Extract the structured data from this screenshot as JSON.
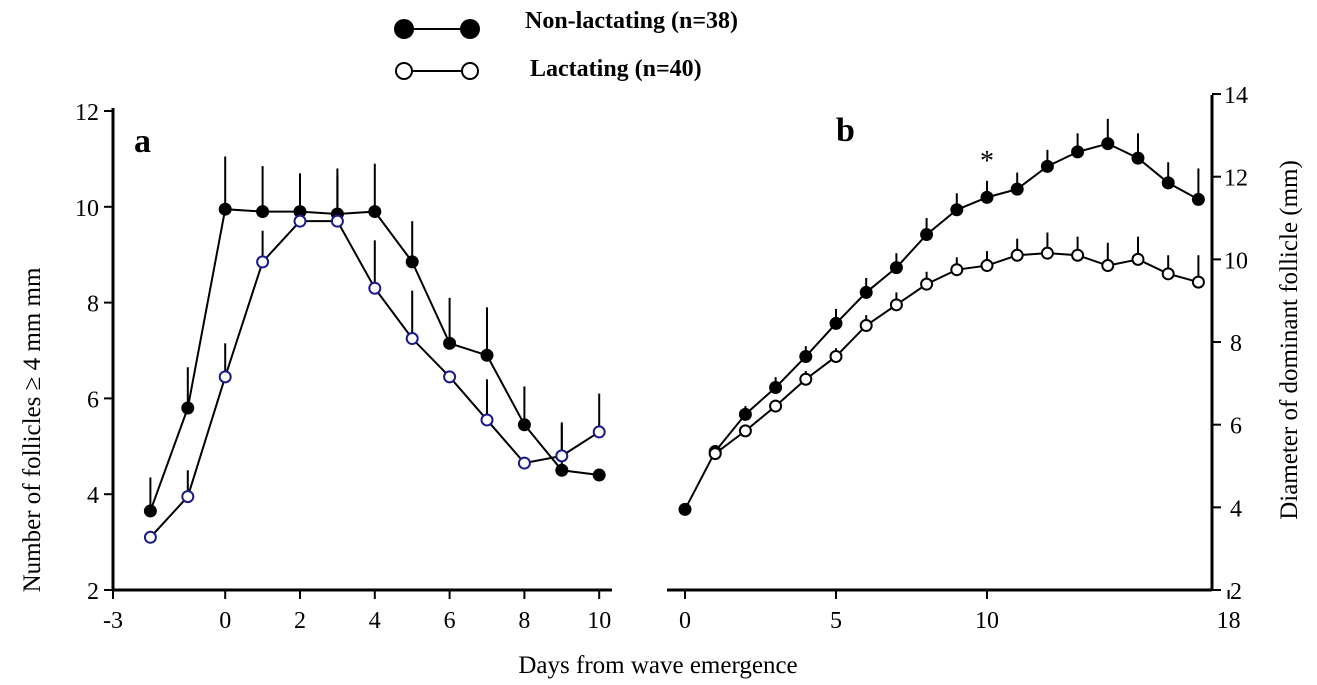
{
  "legend": {
    "items": [
      {
        "label": "Non-lactating (n=38)",
        "marker": "filled-circle",
        "color": "#000000"
      },
      {
        "label": "Lactating (n=40)",
        "marker": "open-circle",
        "color": "#000000"
      }
    ]
  },
  "xlabel": "Days from wave emergence",
  "colors": {
    "axis": "#000000",
    "non_lactating_fill": "#000000",
    "lactating_fill_panel_a": "#ffffff",
    "lactating_stroke_panel_a": "#1a1a8c",
    "lactating_fill_panel_b": "#ffffff",
    "lactating_stroke_panel_b": "#000000",
    "error_bar": "#000000"
  },
  "chart_data": [
    {
      "type": "line",
      "panel_label": "a",
      "ylabel": "Number of follicles ≥ 4 mm mm",
      "xlim": [
        -3,
        10
      ],
      "ylim": [
        2,
        12
      ],
      "x_ticks": [
        "-3",
        "0",
        "2",
        "4",
        "6",
        "8",
        "10"
      ],
      "y_ticks": [
        "2",
        "4",
        "6",
        "8",
        "10",
        "12"
      ],
      "grid": false,
      "series": [
        {
          "name": "Non-lactating (n=38)",
          "marker": "filled",
          "x": [
            -2,
            -1,
            0,
            1,
            2,
            3,
            4,
            5,
            6,
            7,
            8,
            9,
            10
          ],
          "y": [
            3.65,
            5.8,
            9.95,
            9.9,
            9.9,
            9.85,
            9.9,
            8.85,
            7.15,
            6.9,
            5.45,
            4.5,
            4.4
          ],
          "err": [
            0.7,
            0.85,
            1.1,
            0.95,
            0.8,
            0.95,
            1.0,
            0.85,
            0.95,
            1.0,
            0.8,
            1.0,
            0.0
          ]
        },
        {
          "name": "Lactating (n=40)",
          "marker": "open",
          "x": [
            -2,
            -1,
            0,
            1,
            2,
            3,
            4,
            5,
            6,
            7,
            8,
            9,
            10
          ],
          "y": [
            3.1,
            3.95,
            6.45,
            8.85,
            9.7,
            9.7,
            8.3,
            7.25,
            6.45,
            5.55,
            4.65,
            4.8,
            5.3
          ],
          "err": [
            0.0,
            0.55,
            0.7,
            0.65,
            0.0,
            0.95,
            1.0,
            1.0,
            0.0,
            0.85,
            0.0,
            0.65,
            0.8
          ]
        }
      ]
    },
    {
      "type": "line",
      "panel_label": "b",
      "ylabel": "Diameter of dominant follicle (mm)",
      "xlim": [
        0,
        18
      ],
      "ylim": [
        2,
        14
      ],
      "x_ticks": [
        "0",
        "5",
        "10",
        "18"
      ],
      "y_ticks": [
        "2",
        "4",
        "6",
        "8",
        "10",
        "12",
        "14"
      ],
      "grid": false,
      "annotations": [
        {
          "text": "*",
          "x": 10,
          "y": 12.4
        }
      ],
      "series": [
        {
          "name": "Non-lactating (n=38)",
          "marker": "filled",
          "x": [
            0,
            1,
            2,
            3,
            4,
            5,
            6,
            7,
            8,
            9,
            10,
            11,
            12,
            13,
            14,
            15,
            16,
            17
          ],
          "y": [
            3.95,
            5.35,
            6.25,
            6.9,
            7.65,
            8.45,
            9.2,
            9.8,
            10.6,
            11.2,
            11.5,
            11.7,
            12.25,
            12.6,
            12.8,
            12.45,
            11.85,
            11.45
          ],
          "err": [
            0.0,
            0.15,
            0.2,
            0.25,
            0.25,
            0.35,
            0.35,
            0.35,
            0.4,
            0.4,
            0.4,
            0.4,
            0.4,
            0.45,
            0.6,
            0.6,
            0.5,
            0.75
          ]
        },
        {
          "name": "Lactating (n=40)",
          "marker": "open",
          "x": [
            1,
            2,
            3,
            4,
            5,
            6,
            7,
            8,
            9,
            10,
            11,
            12,
            13,
            14,
            15,
            16,
            17
          ],
          "y": [
            5.3,
            5.85,
            6.45,
            7.1,
            7.65,
            8.4,
            8.9,
            9.4,
            9.75,
            9.85,
            10.1,
            10.15,
            10.1,
            9.85,
            10.0,
            9.65,
            9.45
          ],
          "err": [
            0.1,
            0.15,
            0.15,
            0.2,
            0.2,
            0.25,
            0.3,
            0.3,
            0.3,
            0.35,
            0.4,
            0.5,
            0.45,
            0.55,
            0.55,
            0.45,
            0.65
          ]
        }
      ]
    }
  ]
}
